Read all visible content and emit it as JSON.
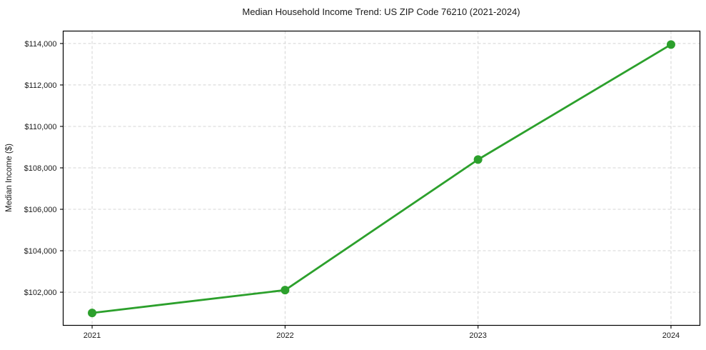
{
  "chart_data": {
    "type": "line",
    "title": "Median Household Income Trend: US ZIP Code 76210 (2021-2024)",
    "xlabel": "",
    "ylabel": "Median Income ($)",
    "x": [
      2021,
      2022,
      2023,
      2024
    ],
    "series": [
      {
        "name": "Median Household Income",
        "values": [
          101000,
          102100,
          108400,
          113950
        ]
      }
    ],
    "x_tick_labels": [
      "2021",
      "2022",
      "2023",
      "2024"
    ],
    "y_tick_values": [
      102000,
      104000,
      106000,
      108000,
      110000,
      112000,
      114000
    ],
    "y_tick_labels": [
      "$102,000",
      "$104,000",
      "$106,000",
      "$108,000",
      "$110,000",
      "$112,000",
      "$114,000"
    ],
    "xlim": [
      2020.85,
      2024.15
    ],
    "ylim": [
      100400,
      114600
    ],
    "grid": true,
    "grid_style": "dashed",
    "legend": "none",
    "colors": {
      "line": "#2ca02c",
      "marker": "#2ca02c",
      "grid": "#d4d4d4",
      "spine": "#000000",
      "text": "#1a1a1a",
      "background": "#ffffff"
    }
  }
}
